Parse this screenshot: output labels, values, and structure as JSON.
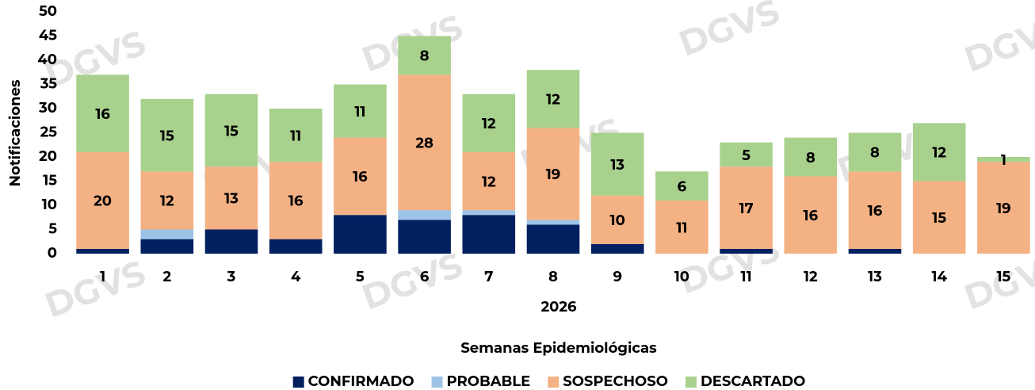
{
  "chart_data": {
    "type": "stacked_bar",
    "watermark": "DGVS",
    "subtitle": "2026",
    "xlabel": "Semanas Epidemiológicas",
    "ylabel": "Notificaciones",
    "categories": [
      "1",
      "2",
      "3",
      "4",
      "5",
      "6",
      "7",
      "8",
      "9",
      "10",
      "11",
      "12",
      "13",
      "14",
      "15"
    ],
    "series": [
      {
        "name": "CONFIRMADO",
        "color": "#002060",
        "labels": false,
        "values": [
          1,
          3,
          5,
          3,
          8,
          7,
          8,
          6,
          2,
          0,
          1,
          0,
          1,
          0,
          0
        ]
      },
      {
        "name": "PROBABLE",
        "color": "#9dc3e6",
        "labels": false,
        "values": [
          0,
          2,
          0,
          0,
          0,
          2,
          1,
          1,
          0,
          0,
          0,
          0,
          0,
          0,
          0
        ]
      },
      {
        "name": "SOSPECHOSO",
        "color": "#f4b183",
        "labels": true,
        "values": [
          20,
          12,
          13,
          16,
          16,
          28,
          12,
          19,
          10,
          11,
          17,
          16,
          16,
          15,
          19
        ]
      },
      {
        "name": "DESCARTADO",
        "color": "#a9d18e",
        "labels": true,
        "values": [
          16,
          15,
          15,
          11,
          11,
          8,
          12,
          12,
          13,
          6,
          5,
          8,
          8,
          12,
          1
        ]
      }
    ],
    "ylim": [
      0,
      50
    ],
    "yticks": [
      0,
      5,
      10,
      15,
      20,
      25,
      30,
      35,
      40,
      45,
      50
    ],
    "grid": false
  }
}
